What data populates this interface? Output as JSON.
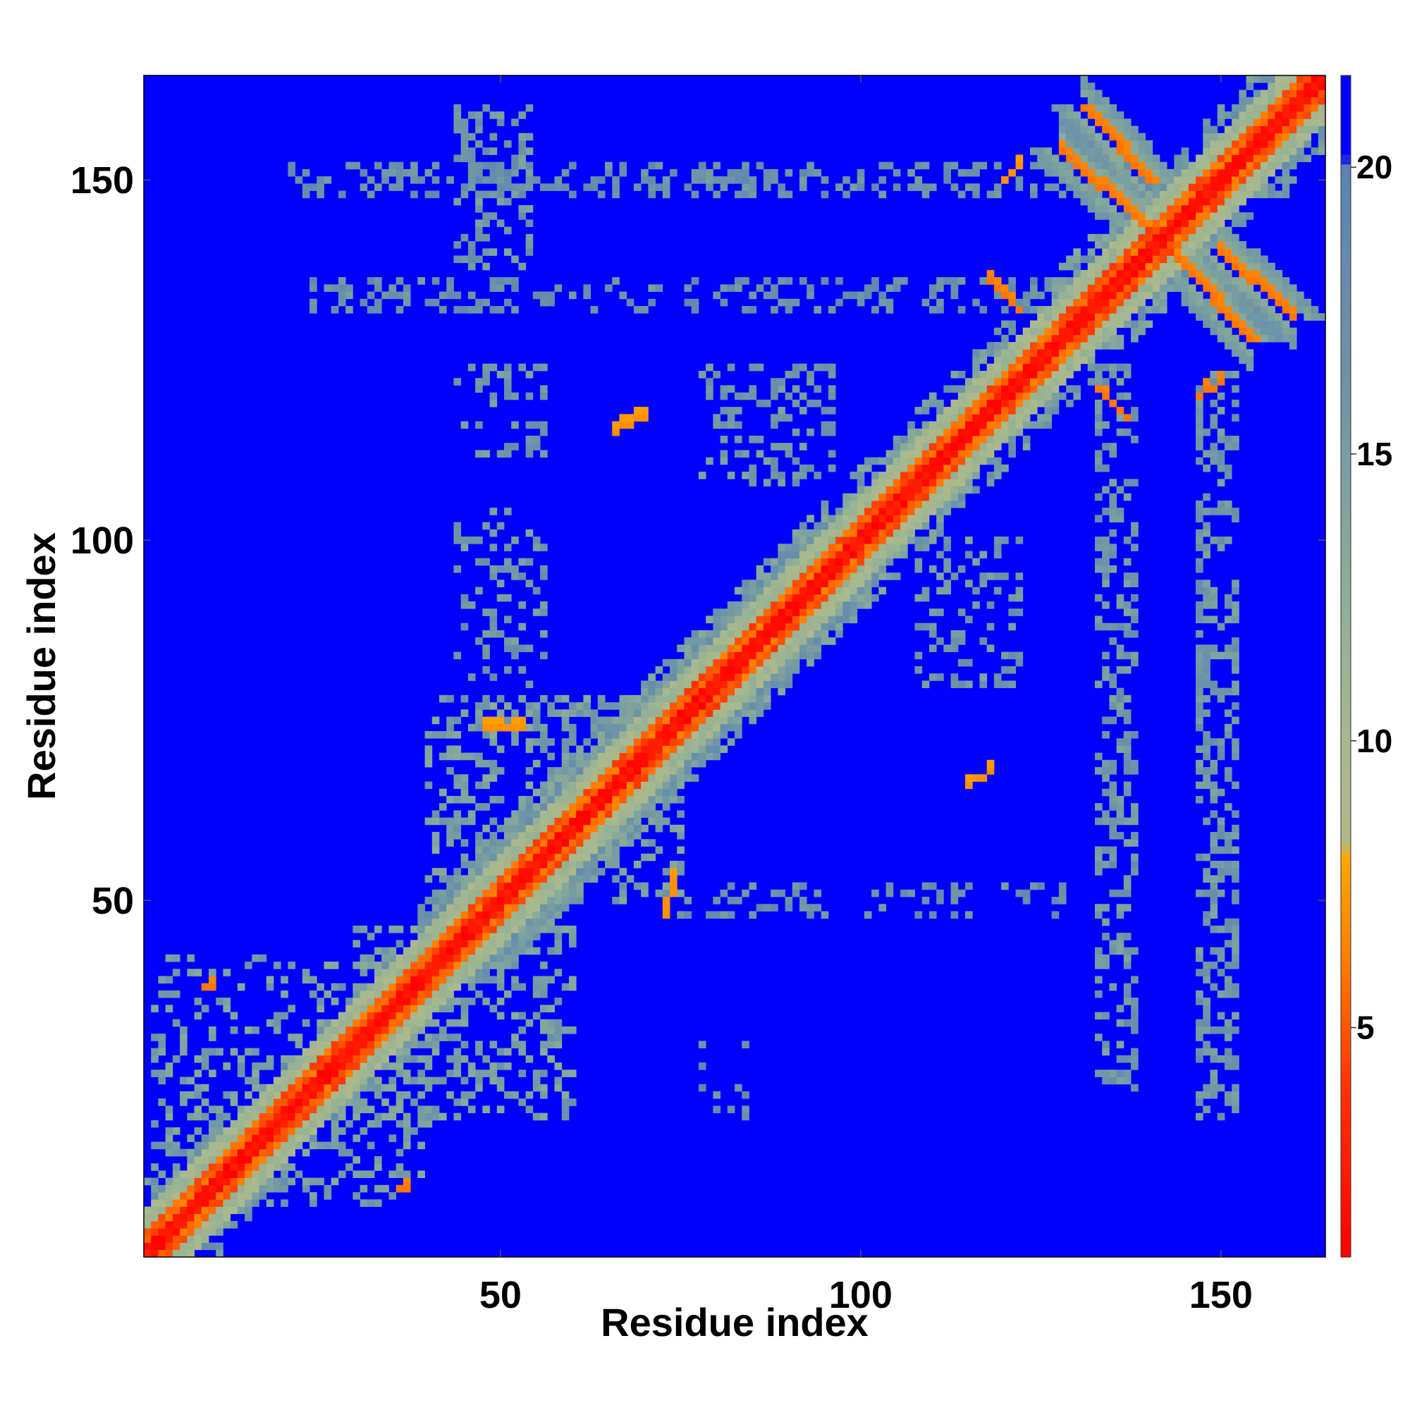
{
  "chart_data": {
    "type": "heatmap",
    "title": "",
    "xlabel": "Residue index",
    "ylabel": "Residue index",
    "n_residues": 164,
    "xlim": [
      1,
      164
    ],
    "ylim": [
      1,
      164
    ],
    "xticks": [
      50,
      100,
      150
    ],
    "yticks": [
      50,
      100,
      150
    ],
    "colorbar": {
      "range": [
        1,
        21.6
      ],
      "ticks": [
        5,
        10,
        15,
        20
      ],
      "stops": [
        {
          "value": 1,
          "color": "#ff0000"
        },
        {
          "value": 4,
          "color": "#ff3300"
        },
        {
          "value": 6,
          "color": "#ff7700"
        },
        {
          "value": 8,
          "color": "#ffaa00"
        },
        {
          "value": 8.2,
          "color": "#b4b886"
        },
        {
          "value": 10,
          "color": "#a7b98f"
        },
        {
          "value": 13,
          "color": "#8aab99"
        },
        {
          "value": 16,
          "color": "#6f96a6"
        },
        {
          "value": 20,
          "color": "#5b82b2"
        },
        {
          "value": 20.2,
          "color": "#0000ff"
        },
        {
          "value": 21.6,
          "color": "#0000ff"
        }
      ]
    },
    "diagonal_band": {
      "core_max": 3,
      "orange_max": 6,
      "green_max": 12,
      "blue_green_max": 16
    },
    "secondary_bands": [
      {
        "x": [
          131,
          140
        ],
        "y": [
          160,
          150
        ],
        "value": 6
      },
      {
        "x": [
          143,
          154
        ],
        "y": [
          140,
          128
        ],
        "value": 6
      }
    ],
    "contact_patches": [
      {
        "x": [
          44,
          46
        ],
        "y": [
          160,
          150
        ],
        "value": 16
      },
      {
        "x": [
          36,
          36
        ],
        "y": [
          150,
          150
        ],
        "value": 17
      },
      {
        "x": [
          66,
          70
        ],
        "y": [
          115,
          117
        ],
        "value": 7
      },
      {
        "x": [
          115,
          118
        ],
        "y": [
          66,
          68
        ],
        "value": 7
      },
      {
        "x": [
          118,
          122
        ],
        "y": [
          136,
          132
        ],
        "value": 6
      },
      {
        "x": [
          133,
          137
        ],
        "y": [
          121,
          117
        ],
        "value": 6
      },
      {
        "x": [
          147,
          150
        ],
        "y": [
          120,
          122
        ],
        "value": 6
      },
      {
        "x": [
          9,
          10
        ],
        "y": [
          38,
          38
        ],
        "value": 6
      },
      {
        "x": [
          36,
          37
        ],
        "y": [
          10,
          10
        ],
        "value": 6
      },
      {
        "x": [
          48,
          53
        ],
        "y": [
          74,
          74
        ],
        "value": 7
      },
      {
        "x": [
          73,
          74
        ],
        "y": [
          48,
          53
        ],
        "value": 7
      },
      {
        "x": [
          120,
          122
        ],
        "y": [
          150,
          152
        ],
        "value": 7
      }
    ],
    "sparse_regions": [
      {
        "x": [
          20,
          160
        ],
        "y": [
          148,
          152
        ],
        "density": 0.32,
        "value": 17
      },
      {
        "x": [
          24,
          158
        ],
        "y": [
          132,
          136
        ],
        "density": 0.34,
        "value": 17
      },
      {
        "x": [
          44,
          54
        ],
        "y": [
          138,
          160
        ],
        "density": 0.35,
        "value": 16
      },
      {
        "x": [
          44,
          56
        ],
        "y": [
          112,
          124
        ],
        "density": 0.2,
        "value": 16
      },
      {
        "x": [
          78,
          96
        ],
        "y": [
          108,
          124
        ],
        "density": 0.3,
        "value": 16
      },
      {
        "x": [
          133,
          138
        ],
        "y": [
          24,
          124
        ],
        "density": 0.42,
        "value": 16
      },
      {
        "x": [
          147,
          152
        ],
        "y": [
          20,
          124
        ],
        "density": 0.42,
        "value": 16
      },
      {
        "x": [
          108,
          122
        ],
        "y": [
          80,
          100
        ],
        "density": 0.25,
        "value": 16
      },
      {
        "x": [
          30,
          60
        ],
        "y": [
          20,
          46
        ],
        "density": 0.35,
        "value": 15
      },
      {
        "x": [
          40,
          75
        ],
        "y": [
          50,
          78
        ],
        "density": 0.35,
        "value": 15
      },
      {
        "x": [
          75,
          130
        ],
        "y": [
          48,
          52
        ],
        "density": 0.2,
        "value": 17
      },
      {
        "x": [
          2,
          40
        ],
        "y": [
          8,
          42
        ],
        "density": 0.25,
        "value": 15
      },
      {
        "x": [
          44,
          56
        ],
        "y": [
          80,
          104
        ],
        "density": 0.18,
        "value": 16
      },
      {
        "x": [
          78,
          84
        ],
        "y": [
          20,
          30
        ],
        "density": 0.12,
        "value": 17
      }
    ]
  }
}
